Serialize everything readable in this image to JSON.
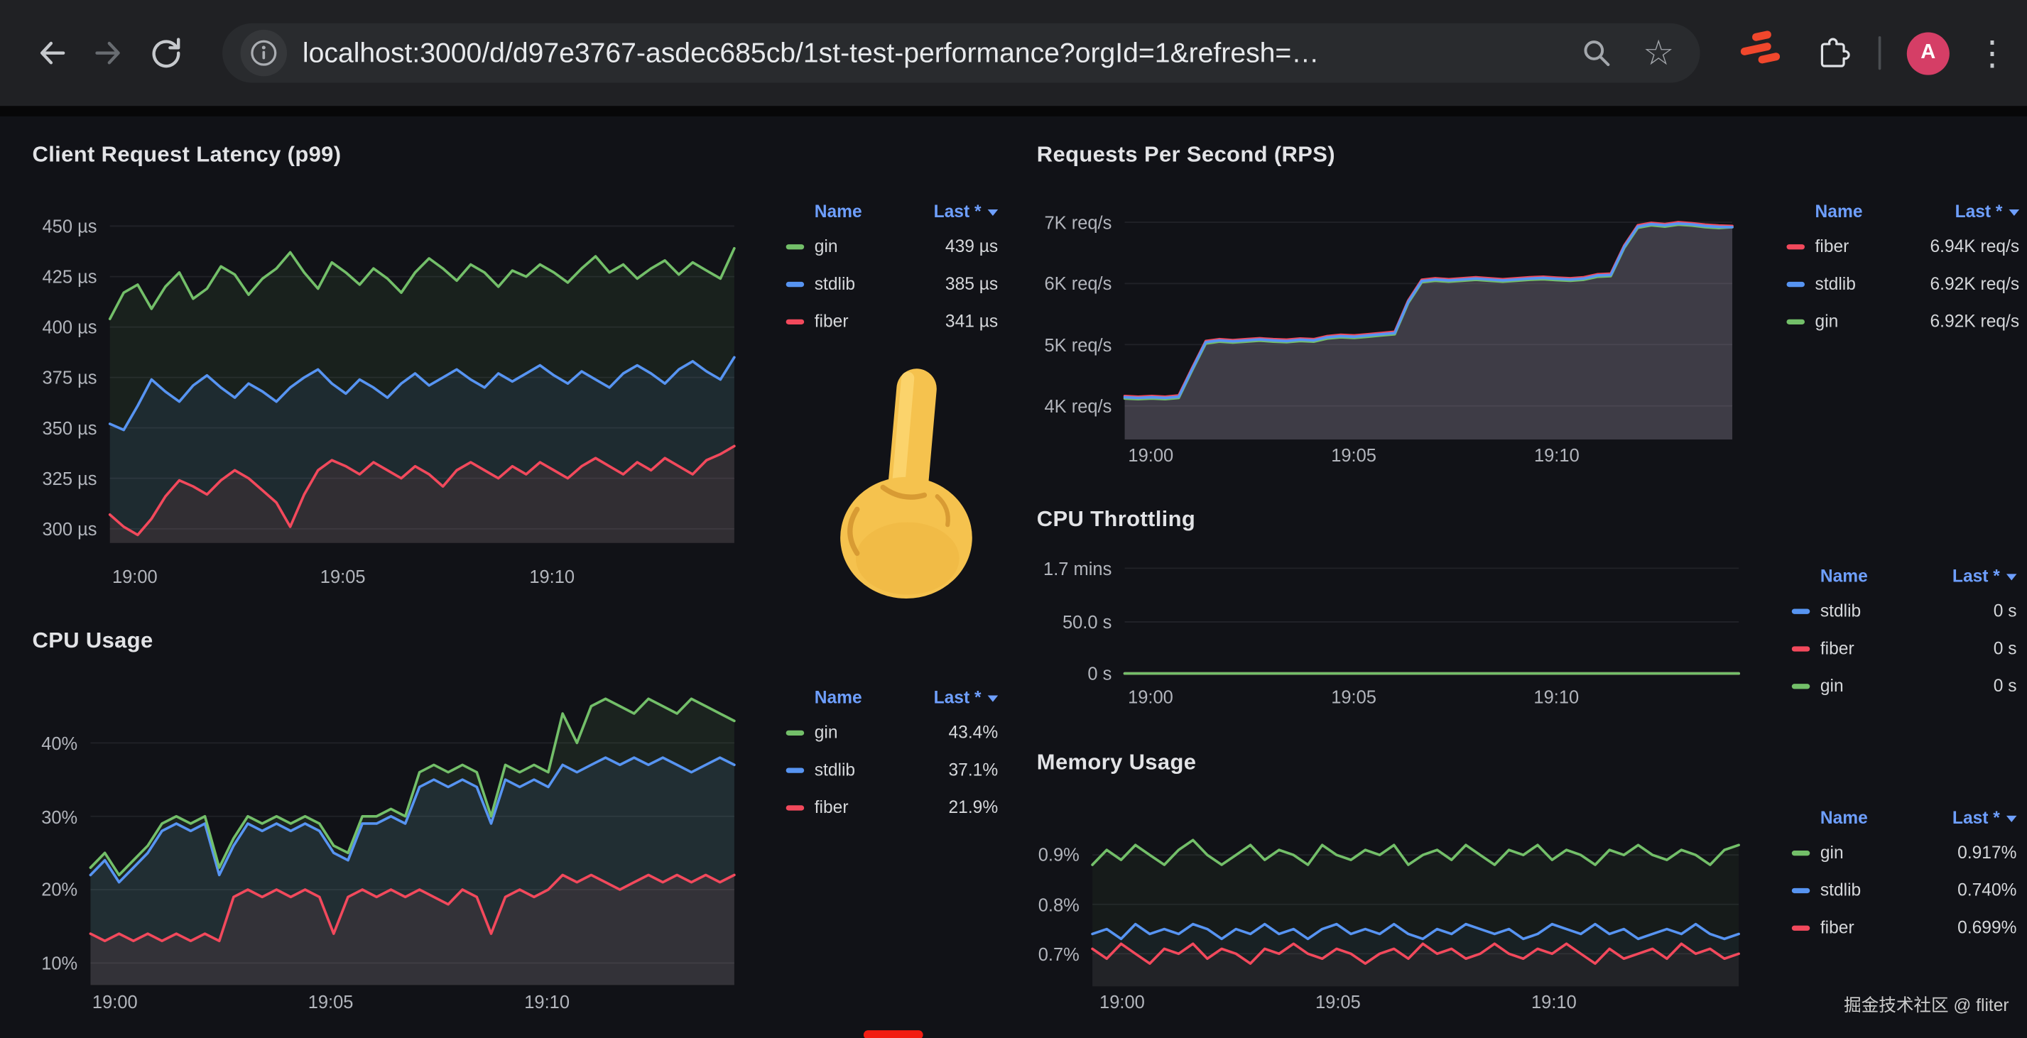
{
  "browser": {
    "url": "localhost:3000/d/d97e3767-asdec685cb/1st-test-performance?orgId=1&refresh=…",
    "avatar_letter": "A",
    "star_glyph": "☆",
    "menu_glyph": "⋮"
  },
  "watermark": "掘金技术社区 @ fliter",
  "colors": {
    "gin": "#73bf69",
    "stdlib": "#5794f2",
    "fiber": "#f2495c",
    "legend_header": "#6e9fff",
    "avatar_bg": "#d53e66"
  },
  "panels": {
    "latency": {
      "title": "Client Request Latency (p99)",
      "legend": {
        "name_header": "Name",
        "last_header": "Last *",
        "rows": [
          {
            "name": "gin",
            "color": "#73bf69",
            "value": "439 µs"
          },
          {
            "name": "stdlib",
            "color": "#5794f2",
            "value": "385 µs"
          },
          {
            "name": "fiber",
            "color": "#f2495c",
            "value": "341 µs"
          }
        ]
      }
    },
    "rps": {
      "title": "Requests Per Second (RPS)",
      "legend": {
        "name_header": "Name",
        "last_header": "Last *",
        "rows": [
          {
            "name": "fiber",
            "color": "#f2495c",
            "value": "6.94K req/s"
          },
          {
            "name": "stdlib",
            "color": "#5794f2",
            "value": "6.92K req/s"
          },
          {
            "name": "gin",
            "color": "#73bf69",
            "value": "6.92K req/s"
          }
        ]
      }
    },
    "cpu": {
      "title": "CPU Usage",
      "legend": {
        "name_header": "Name",
        "last_header": "Last *",
        "rows": [
          {
            "name": "gin",
            "color": "#73bf69",
            "value": "43.4%"
          },
          {
            "name": "stdlib",
            "color": "#5794f2",
            "value": "37.1%"
          },
          {
            "name": "fiber",
            "color": "#f2495c",
            "value": "21.9%"
          }
        ]
      }
    },
    "throttling": {
      "title": "CPU Throttling",
      "legend": {
        "name_header": "Name",
        "last_header": "Last *",
        "rows": [
          {
            "name": "stdlib",
            "color": "#5794f2",
            "value": "0 s"
          },
          {
            "name": "fiber",
            "color": "#f2495c",
            "value": "0 s"
          },
          {
            "name": "gin",
            "color": "#73bf69",
            "value": "0 s"
          }
        ]
      }
    },
    "memory": {
      "title": "Memory Usage",
      "legend": {
        "name_header": "Name",
        "last_header": "Last *",
        "rows": [
          {
            "name": "gin",
            "color": "#73bf69",
            "value": "0.917%"
          },
          {
            "name": "stdlib",
            "color": "#5794f2",
            "value": "0.740%"
          },
          {
            "name": "fiber",
            "color": "#f2495c",
            "value": "0.699%"
          }
        ]
      }
    }
  },
  "chart_data": [
    {
      "id": "latency",
      "type": "line",
      "title": "Client Request Latency (p99)",
      "ylabel": "latency (µs)",
      "ylim": [
        293,
        457
      ],
      "fill_opacity": 0.09,
      "yticks": {
        "values": [
          450,
          425,
          400,
          375,
          350,
          325,
          300
        ],
        "labels": [
          "450 µs",
          "425 µs",
          "400 µs",
          "375 µs",
          "350 µs",
          "325 µs",
          "300 µs"
        ]
      },
      "xticks": {
        "labels": [
          "19:00",
          "19:05",
          "19:10"
        ],
        "fractions": [
          0.04,
          0.373,
          0.708
        ]
      },
      "series": [
        {
          "name": "gin",
          "color": "#73bf69",
          "values": [
            404,
            417,
            421,
            409,
            420,
            427,
            414,
            419,
            430,
            426,
            416,
            424,
            429,
            437,
            427,
            419,
            432,
            427,
            421,
            429,
            424,
            417,
            427,
            434,
            429,
            423,
            431,
            427,
            420,
            428,
            425,
            431,
            427,
            422,
            429,
            435,
            427,
            431,
            424,
            429,
            433,
            426,
            432,
            428,
            424,
            439
          ]
        },
        {
          "name": "stdlib",
          "color": "#5794f2",
          "values": [
            352,
            349,
            361,
            374,
            368,
            363,
            371,
            376,
            370,
            365,
            372,
            368,
            363,
            370,
            375,
            379,
            372,
            367,
            374,
            370,
            365,
            372,
            377,
            371,
            375,
            379,
            374,
            370,
            377,
            373,
            377,
            381,
            376,
            372,
            378,
            374,
            370,
            377,
            381,
            377,
            372,
            379,
            383,
            378,
            374,
            385
          ]
        },
        {
          "name": "fiber",
          "color": "#f2495c",
          "values": [
            307,
            301,
            297,
            305,
            316,
            324,
            321,
            317,
            324,
            329,
            325,
            319,
            313,
            301,
            317,
            329,
            334,
            331,
            327,
            333,
            329,
            325,
            331,
            327,
            321,
            329,
            333,
            329,
            325,
            331,
            327,
            333,
            329,
            325,
            331,
            335,
            331,
            327,
            333,
            329,
            335,
            331,
            327,
            334,
            337,
            341
          ]
        }
      ]
    },
    {
      "id": "rps",
      "type": "line",
      "title": "Requests Per Second (RPS)",
      "ylabel": "req/s",
      "ylim": [
        3450,
        7210
      ],
      "fill_opacity": 0.14,
      "yticks": {
        "values": [
          7000,
          6000,
          5000,
          4000
        ],
        "labels": [
          "7K req/s",
          "6K req/s",
          "5K req/s",
          "4K req/s"
        ]
      },
      "xticks": {
        "labels": [
          "19:00",
          "19:05",
          "19:10"
        ],
        "fractions": [
          0.043,
          0.377,
          0.711
        ]
      },
      "series": [
        {
          "name": "gin",
          "color": "#73bf69",
          "values": [
            4120,
            4110,
            4120,
            4110,
            4130,
            4580,
            5020,
            5050,
            5035,
            5050,
            5065,
            5050,
            5040,
            5060,
            5050,
            5100,
            5120,
            5110,
            5130,
            5150,
            5170,
            5680,
            6020,
            6045,
            6030,
            6045,
            6060,
            6045,
            6030,
            6045,
            6060,
            6070,
            6055,
            6045,
            6060,
            6110,
            6120,
            6580,
            6910,
            6950,
            6930,
            6960,
            6945,
            6920,
            6905,
            6920
          ]
        },
        {
          "name": "fiber",
          "color": "#f2495c",
          "values": [
            4160,
            4150,
            4160,
            4150,
            4170,
            4620,
            5060,
            5090,
            5075,
            5090,
            5105,
            5090,
            5080,
            5100,
            5090,
            5140,
            5160,
            5150,
            5170,
            5190,
            5210,
            5720,
            6060,
            6085,
            6070,
            6085,
            6100,
            6085,
            6070,
            6085,
            6100,
            6110,
            6095,
            6085,
            6100,
            6150,
            6160,
            6620,
            6950,
            6990,
            6970,
            7000,
            6985,
            6960,
            6945,
            6940
          ]
        },
        {
          "name": "stdlib",
          "color": "#5794f2",
          "values": [
            4140,
            4130,
            4140,
            4130,
            4150,
            4600,
            5040,
            5070,
            5055,
            5070,
            5085,
            5070,
            5060,
            5080,
            5070,
            5120,
            5140,
            5130,
            5150,
            5170,
            5190,
            5700,
            6040,
            6065,
            6050,
            6065,
            6080,
            6065,
            6050,
            6065,
            6080,
            6090,
            6075,
            6065,
            6080,
            6130,
            6140,
            6600,
            6930,
            6970,
            6950,
            6980,
            6965,
            6940,
            6925,
            6920
          ]
        }
      ]
    },
    {
      "id": "cpu",
      "type": "line",
      "title": "CPU Usage",
      "ylabel": "percent",
      "ylim": [
        7,
        44
      ],
      "fill_opacity": 0.1,
      "yticks": {
        "values": [
          40,
          30,
          20,
          10
        ],
        "labels": [
          "40%",
          "30%",
          "20%",
          "10%"
        ]
      },
      "xticks": {
        "labels": [
          "19:00",
          "19:05",
          "19:10"
        ],
        "fractions": [
          0.038,
          0.373,
          0.709
        ]
      },
      "series": [
        {
          "name": "fiber",
          "color": "#f2495c",
          "values": [
            14,
            13,
            14,
            13,
            14,
            13,
            14,
            13,
            14,
            13,
            19,
            20,
            19,
            20,
            19,
            20,
            19,
            14,
            19,
            20,
            19,
            20,
            19,
            20,
            19,
            18,
            20,
            19,
            14,
            19,
            20,
            19,
            20,
            22,
            21,
            22,
            21,
            20,
            21,
            22,
            21,
            22,
            21,
            22,
            21,
            22
          ]
        },
        {
          "name": "stdlib",
          "color": "#5794f2",
          "values": [
            22,
            24,
            21,
            23,
            25,
            28,
            29,
            28,
            29,
            22,
            26,
            29,
            28,
            29,
            28,
            29,
            28,
            25,
            24,
            29,
            29,
            30,
            29,
            34,
            35,
            34,
            35,
            34,
            29,
            35,
            34,
            35,
            34,
            37,
            36,
            37,
            38,
            37,
            38,
            37,
            38,
            37,
            36,
            37,
            38,
            37
          ]
        },
        {
          "name": "gin",
          "color": "#73bf69",
          "values": [
            23,
            25,
            22,
            24,
            26,
            29,
            30,
            29,
            30,
            23,
            27,
            30,
            29,
            30,
            29,
            30,
            29,
            26,
            25,
            30,
            30,
            31,
            30,
            36,
            37,
            36,
            37,
            36,
            30,
            37,
            36,
            37,
            36,
            44,
            40,
            45,
            46,
            45,
            44,
            46,
            45,
            44,
            46,
            45,
            44,
            43
          ]
        }
      ]
    },
    {
      "id": "throttling",
      "type": "line",
      "title": "CPU Throttling",
      "ylabel": "seconds",
      "ylim": [
        0,
        114
      ],
      "fill_opacity": 0,
      "yticks": {
        "values": [
          102,
          50,
          0
        ],
        "labels": [
          "1.7 mins",
          "50.0 s",
          "0 s"
        ]
      },
      "xticks": {
        "labels": [
          "19:00",
          "19:05",
          "19:10"
        ],
        "fractions": [
          0.042,
          0.373,
          0.703
        ]
      },
      "series": [
        {
          "name": "stdlib",
          "color": "#5794f2",
          "values": [
            0,
            0
          ]
        },
        {
          "name": "fiber",
          "color": "#f2495c",
          "values": [
            0,
            0
          ]
        },
        {
          "name": "gin",
          "color": "#73bf69",
          "values": [
            0,
            0
          ]
        }
      ]
    },
    {
      "id": "memory",
      "type": "line",
      "title": "Memory Usage",
      "ylabel": "percent",
      "ylim": [
        0.634,
        1.003
      ],
      "fill_opacity": 0.05,
      "yticks": {
        "values": [
          0.9,
          0.8,
          0.7
        ],
        "labels": [
          "0.9%",
          "0.8%",
          "0.7%"
        ]
      },
      "xticks": {
        "labels": [
          "19:00",
          "19:05",
          "19:10"
        ],
        "fractions": [
          0.046,
          0.38,
          0.714
        ]
      },
      "series": [
        {
          "name": "fiber",
          "color": "#f2495c",
          "values": [
            0.71,
            0.69,
            0.72,
            0.7,
            0.68,
            0.71,
            0.7,
            0.72,
            0.69,
            0.71,
            0.7,
            0.68,
            0.71,
            0.7,
            0.72,
            0.7,
            0.69,
            0.71,
            0.7,
            0.68,
            0.7,
            0.71,
            0.69,
            0.72,
            0.7,
            0.71,
            0.69,
            0.7,
            0.72,
            0.7,
            0.69,
            0.71,
            0.7,
            0.72,
            0.7,
            0.68,
            0.71,
            0.69,
            0.7,
            0.71,
            0.69,
            0.72,
            0.7,
            0.71,
            0.69,
            0.7
          ]
        },
        {
          "name": "stdlib",
          "color": "#5794f2",
          "values": [
            0.74,
            0.75,
            0.73,
            0.76,
            0.74,
            0.75,
            0.74,
            0.76,
            0.75,
            0.73,
            0.75,
            0.74,
            0.76,
            0.74,
            0.75,
            0.73,
            0.75,
            0.76,
            0.74,
            0.75,
            0.74,
            0.76,
            0.74,
            0.73,
            0.75,
            0.74,
            0.76,
            0.75,
            0.74,
            0.75,
            0.73,
            0.74,
            0.76,
            0.75,
            0.74,
            0.76,
            0.74,
            0.75,
            0.73,
            0.74,
            0.75,
            0.74,
            0.76,
            0.74,
            0.73,
            0.74
          ]
        },
        {
          "name": "gin",
          "color": "#73bf69",
          "values": [
            0.88,
            0.91,
            0.89,
            0.92,
            0.9,
            0.88,
            0.91,
            0.93,
            0.9,
            0.88,
            0.9,
            0.92,
            0.89,
            0.91,
            0.9,
            0.88,
            0.92,
            0.9,
            0.89,
            0.91,
            0.9,
            0.92,
            0.88,
            0.9,
            0.91,
            0.89,
            0.92,
            0.9,
            0.88,
            0.91,
            0.9,
            0.92,
            0.89,
            0.91,
            0.9,
            0.88,
            0.91,
            0.9,
            0.92,
            0.9,
            0.89,
            0.91,
            0.9,
            0.88,
            0.91,
            0.92
          ]
        }
      ]
    }
  ]
}
